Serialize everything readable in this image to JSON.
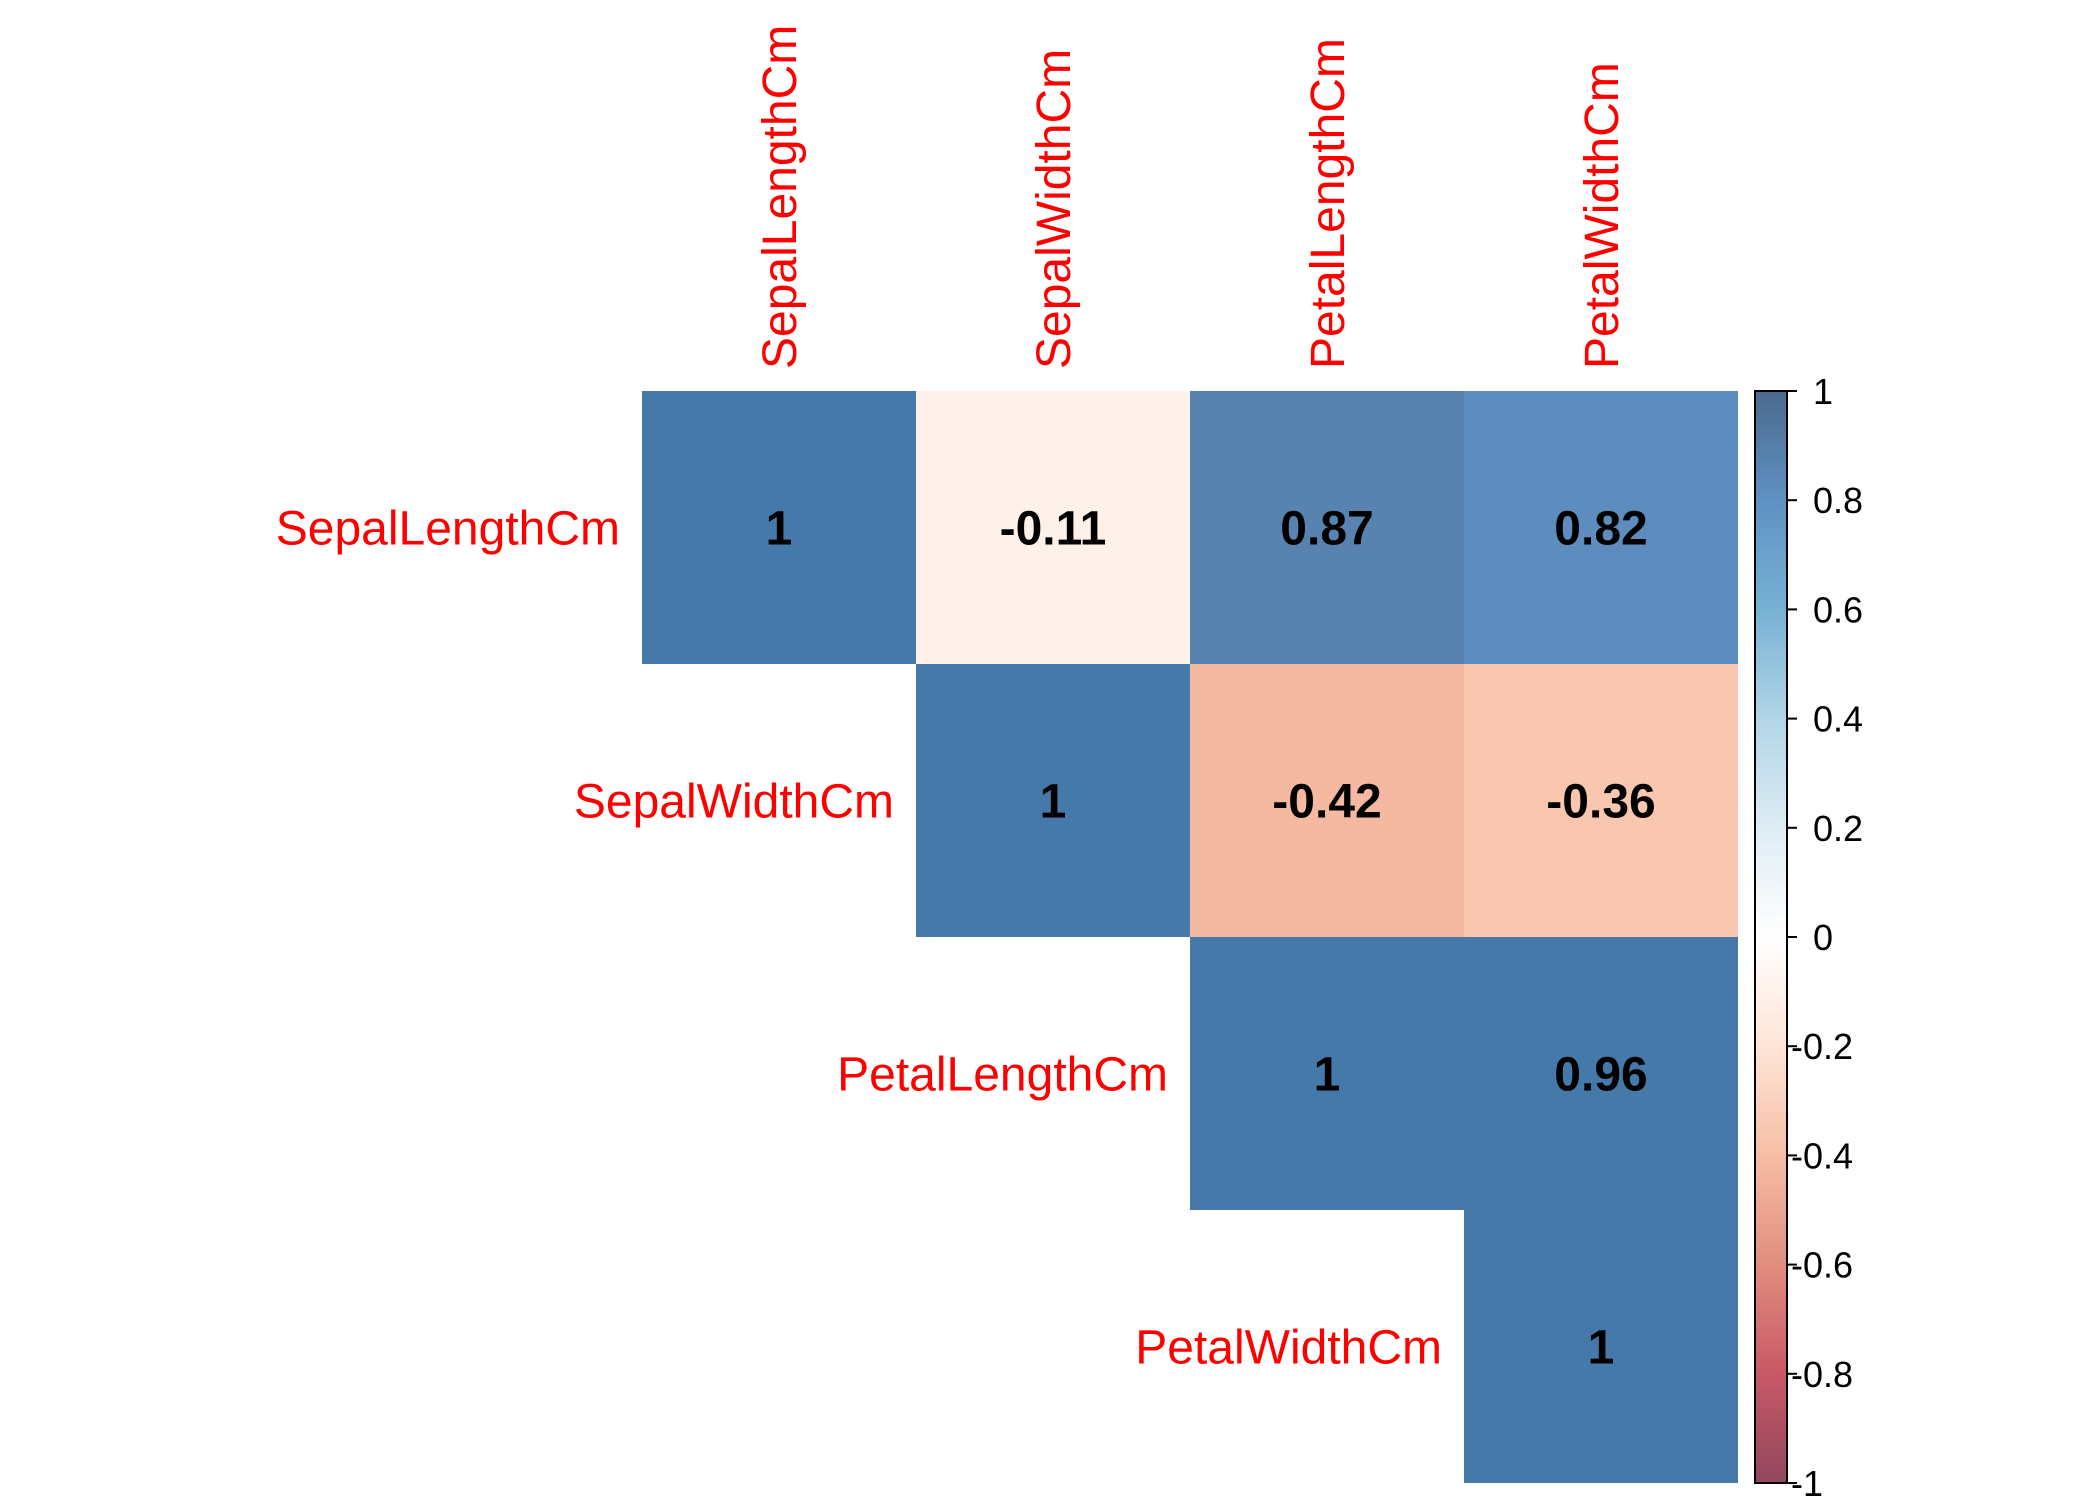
{
  "chart_data": {
    "type": "heatmap",
    "variant": "upper-triangular correlation matrix",
    "variables": [
      "SepalLengthCm",
      "SepalWidthCm",
      "PetalLengthCm",
      "PetalWidthCm"
    ],
    "matrix": [
      [
        1,
        -0.11,
        0.87,
        0.82
      ],
      [
        null,
        1,
        -0.42,
        -0.36
      ],
      [
        null,
        null,
        1,
        0.96
      ],
      [
        null,
        null,
        null,
        1
      ]
    ],
    "cell_labels": [
      [
        "1",
        "-0.11",
        "0.87",
        "0.82"
      ],
      [
        "",
        "1",
        "-0.42",
        "-0.36"
      ],
      [
        "",
        "",
        "1",
        "0.96"
      ],
      [
        "",
        "",
        "",
        "1"
      ]
    ],
    "label_color": "#FF0000",
    "value_range": [
      -1,
      1
    ],
    "colorbar": {
      "ticks": [
        1,
        0.8,
        0.6,
        0.4,
        0.2,
        0,
        -0.2,
        -0.4,
        -0.6,
        -0.8,
        -1
      ],
      "tick_labels": [
        "1",
        "0.8",
        "0.6",
        "0.4",
        "0.2",
        "0",
        "-0.2",
        "-0.4",
        "-0.6",
        "-0.8",
        "-1"
      ],
      "low_color": "#67001F",
      "mid_color": "#FFFFFF",
      "high_color": "#053061",
      "placement": "right"
    },
    "grid": false
  }
}
